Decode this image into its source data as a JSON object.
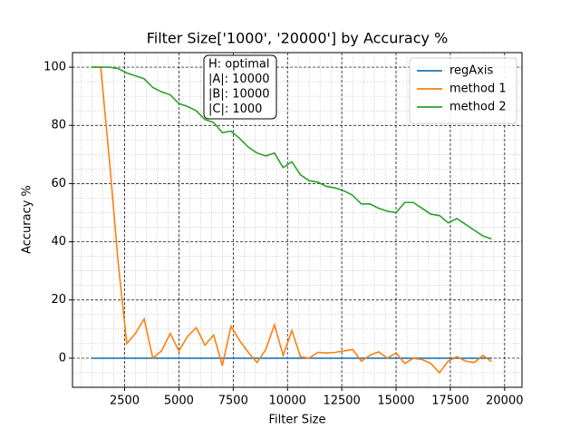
{
  "chart_data": {
    "type": "line",
    "title": "Filter Size['1000', '20000'] by Accuracy %",
    "x_label": "Filter Size",
    "y_label": "Accuracy %",
    "x": [
      1000,
      1400,
      1800,
      2200,
      2600,
      3000,
      3400,
      3800,
      4200,
      4600,
      5000,
      5400,
      5800,
      6200,
      6600,
      7000,
      7400,
      7800,
      8200,
      8600,
      9000,
      9400,
      9800,
      10200,
      10600,
      11000,
      11400,
      11800,
      12200,
      12600,
      13000,
      13400,
      13800,
      14200,
      14600,
      15000,
      15400,
      15800,
      16200,
      16600,
      17000,
      17400,
      17800,
      18200,
      18600,
      19000,
      19400
    ],
    "series": [
      {
        "name": "regAxis",
        "color": "#1f77b4",
        "values": [
          0,
          0,
          0,
          0,
          0,
          0,
          0,
          0,
          0,
          0,
          0,
          0,
          0,
          0,
          0,
          0,
          0,
          0,
          0,
          0,
          0,
          0,
          0,
          0,
          0,
          0,
          0,
          0,
          0,
          0,
          0,
          0,
          0,
          0,
          0,
          0,
          0,
          0,
          0,
          0,
          0,
          0,
          0,
          0,
          0,
          0,
          0
        ]
      },
      {
        "name": "method 1",
        "color": "#ff7f0e",
        "values": [
          100,
          100,
          68,
          33,
          5,
          8.5,
          13.5,
          0,
          2.5,
          8.5,
          2.5,
          7.5,
          10.5,
          4.5,
          8,
          -2.5,
          11,
          6,
          2,
          -1.5,
          3,
          11.5,
          1,
          9.5,
          0.5,
          0,
          2,
          1.8,
          2,
          2.5,
          3,
          -1,
          1,
          2.2,
          0,
          1.8,
          -1.8,
          0,
          -0.5,
          -1.8,
          -5,
          -1,
          0.5,
          -1,
          -1.5,
          1,
          -1.2
        ]
      },
      {
        "name": "method 2",
        "color": "#2ca02c",
        "values": [
          100,
          100,
          100,
          99.5,
          98,
          97,
          96,
          93,
          91.5,
          90.5,
          87.5,
          86.5,
          85,
          82,
          81,
          77.5,
          78,
          75.5,
          72.5,
          70.5,
          69.5,
          70.5,
          65.5,
          67.5,
          63,
          61,
          60.5,
          59,
          58.5,
          57.5,
          56,
          53,
          53,
          51.5,
          50.5,
          50,
          53.5,
          53.5,
          51.5,
          49.5,
          49,
          46.5,
          48,
          46,
          44,
          42,
          41
        ]
      }
    ],
    "xlim": [
      100,
      20800
    ],
    "ylim": [
      -10,
      105
    ],
    "xticks": [
      2500,
      5000,
      7500,
      10000,
      12500,
      15000,
      17500,
      20000
    ],
    "yticks": [
      0,
      20,
      40,
      60,
      80,
      100
    ],
    "grid": true,
    "legend": "upper right",
    "annotation": [
      "H: optimal",
      "|A|: 10000",
      "|B|: 10000",
      "|C|: 1000"
    ]
  }
}
